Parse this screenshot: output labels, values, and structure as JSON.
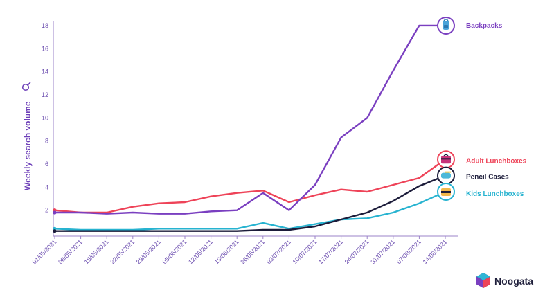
{
  "brand": {
    "name": "Noogata"
  },
  "chart_data": {
    "type": "line",
    "ylabel": "Weekly search volume",
    "ylim": [
      0,
      18
    ],
    "yticks": [
      2,
      4,
      6,
      8,
      10,
      12,
      14,
      16,
      18
    ],
    "categories": [
      "01/05/2021",
      "08/05/2021",
      "15/05/2021",
      "22/05/2021",
      "29/05/2021",
      "05/06/2021",
      "12/06/2021",
      "19/06/2021",
      "26/06/2021",
      "03/07/2021",
      "10/07/2021",
      "17/07/2021",
      "24/07/2021",
      "31/07/2021",
      "07/08/2021",
      "14/08/2021"
    ],
    "grid": false,
    "legend": "right-end-labels",
    "series": [
      {
        "name": "Backpacks",
        "color": "#7a3fc0",
        "icon": "backpack-icon",
        "values": [
          1.8,
          1.8,
          1.7,
          1.8,
          1.7,
          1.7,
          1.9,
          2.0,
          3.5,
          2.0,
          4.2,
          8.3,
          10.0,
          14.1,
          18.0,
          18.0
        ]
      },
      {
        "name": "Adult Lunchboxes",
        "color": "#ee4358",
        "icon": "adult-lunchbox-icon",
        "values": [
          2.0,
          1.8,
          1.8,
          2.3,
          2.6,
          2.7,
          3.2,
          3.5,
          3.7,
          2.7,
          3.3,
          3.8,
          3.6,
          4.2,
          4.8,
          6.4
        ]
      },
      {
        "name": "Pencil Cases",
        "color": "#1c1c3a",
        "icon": "pencil-case-icon",
        "values": [
          0.2,
          0.2,
          0.2,
          0.2,
          0.2,
          0.2,
          0.2,
          0.2,
          0.3,
          0.3,
          0.6,
          1.2,
          1.8,
          2.8,
          4.1,
          5.0
        ]
      },
      {
        "name": "Kids Lunchboxes",
        "color": "#27b3d0",
        "icon": "kids-lunchbox-icon",
        "values": [
          0.4,
          0.3,
          0.3,
          0.3,
          0.4,
          0.4,
          0.4,
          0.4,
          0.9,
          0.4,
          0.8,
          1.2,
          1.3,
          1.8,
          2.6,
          3.6
        ]
      }
    ]
  }
}
